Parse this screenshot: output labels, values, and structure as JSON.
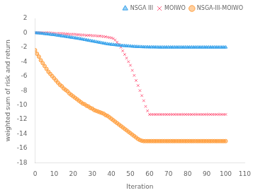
{
  "chart_data": {
    "type": "line",
    "title": "",
    "xlabel": "Iteration",
    "ylabel": "weighted sum of risk and return",
    "xlim": [
      0,
      110
    ],
    "ylim": [
      -18,
      2
    ],
    "xticks": [
      0,
      10,
      20,
      30,
      40,
      50,
      60,
      70,
      80,
      90,
      100,
      110
    ],
    "yticks": [
      2,
      0,
      -2,
      -4,
      -6,
      -8,
      -10,
      -12,
      -14,
      -16,
      -18
    ],
    "grid": false,
    "legend": "upper right",
    "x": [
      0,
      1,
      2,
      3,
      4,
      5,
      6,
      7,
      8,
      9,
      10,
      11,
      12,
      13,
      14,
      15,
      16,
      17,
      18,
      19,
      20,
      21,
      22,
      23,
      24,
      25,
      26,
      27,
      28,
      29,
      30,
      31,
      32,
      33,
      34,
      35,
      36,
      37,
      38,
      39,
      40,
      41,
      42,
      43,
      44,
      45,
      46,
      47,
      48,
      49,
      50,
      51,
      52,
      53,
      54,
      55,
      56,
      57,
      58,
      59,
      60,
      61,
      62,
      63,
      64,
      65,
      66,
      67,
      68,
      69,
      70,
      71,
      72,
      73,
      74,
      75,
      76,
      77,
      78,
      79,
      80,
      81,
      82,
      83,
      84,
      85,
      86,
      87,
      88,
      89,
      90,
      91,
      92,
      93,
      94,
      95,
      96,
      97,
      98,
      99,
      100
    ],
    "series": [
      {
        "name": "NSGA III",
        "marker": "triangle",
        "line_style": "dashed",
        "values": [
          0.0,
          -0.02,
          -0.04,
          -0.07,
          -0.1,
          -0.13,
          -0.16,
          -0.19,
          -0.22,
          -0.25,
          -0.28,
          -0.32,
          -0.36,
          -0.4,
          -0.44,
          -0.48,
          -0.52,
          -0.56,
          -0.6,
          -0.64,
          -0.68,
          -0.72,
          -0.76,
          -0.8,
          -0.85,
          -0.9,
          -0.95,
          -1.0,
          -1.05,
          -1.1,
          -1.15,
          -1.2,
          -1.25,
          -1.3,
          -1.35,
          -1.4,
          -1.45,
          -1.5,
          -1.55,
          -1.58,
          -1.61,
          -1.64,
          -1.67,
          -1.7,
          -1.73,
          -1.76,
          -1.78,
          -1.8,
          -1.82,
          -1.84,
          -1.86,
          -1.88,
          -1.9,
          -1.92,
          -1.93,
          -1.94,
          -1.95,
          -1.96,
          -1.97,
          -1.97,
          -1.98,
          -1.98,
          -1.98,
          -1.99,
          -1.99,
          -2.0,
          -2.0,
          -2.0,
          -2.0,
          -2.0,
          -2.0,
          -2.0,
          -2.0,
          -2.0,
          -2.0,
          -2.0,
          -2.0,
          -2.0,
          -2.0,
          -2.0,
          -2.0,
          -2.0,
          -2.0,
          -2.0,
          -2.0,
          -2.0,
          -2.0,
          -2.0,
          -2.0,
          -2.0,
          -2.0,
          -2.0,
          -2.0,
          -2.0,
          -2.0,
          -2.0,
          -2.0,
          -2.0,
          -2.0,
          -2.0,
          -2.0
        ]
      },
      {
        "name": "MOIWO",
        "marker": "x",
        "line_style": "none",
        "values": [
          0.0,
          0.0,
          0.0,
          0.0,
          0.0,
          0.0,
          0.0,
          0.0,
          0.0,
          -0.05,
          -0.05,
          -0.1,
          -0.1,
          -0.1,
          -0.1,
          -0.1,
          -0.15,
          -0.15,
          -0.2,
          -0.2,
          -0.2,
          -0.2,
          -0.25,
          -0.25,
          -0.3,
          -0.3,
          -0.3,
          -0.35,
          -0.35,
          -0.35,
          -0.4,
          -0.4,
          -0.4,
          -0.45,
          -0.45,
          -0.5,
          -0.5,
          -0.55,
          -0.6,
          -0.65,
          -0.7,
          -0.8,
          -1.0,
          -1.3,
          -1.6,
          -2.0,
          -2.5,
          -3.0,
          -3.5,
          -4.0,
          -4.5,
          -5.2,
          -5.9,
          -6.6,
          -7.3,
          -8.0,
          -8.7,
          -9.4,
          -10.2,
          -10.8,
          -11.3,
          -11.3,
          -11.3,
          -11.3,
          -11.3,
          -11.3,
          -11.3,
          -11.3,
          -11.3,
          -11.3,
          -11.3,
          -11.3,
          -11.3,
          -11.3,
          -11.3,
          -11.3,
          -11.3,
          -11.3,
          -11.3,
          -11.3,
          -11.3,
          -11.3,
          -11.3,
          -11.3,
          -11.3,
          -11.3,
          -11.3,
          -11.3,
          -11.3,
          -11.3,
          -11.3,
          -11.3,
          -11.3,
          -11.3,
          -11.3,
          -11.3,
          -11.3,
          -11.3,
          -11.3,
          -11.3,
          -11.3
        ]
      },
      {
        "name": "NSGA-III-MOIWO",
        "marker": "circle",
        "line_style": "dotted",
        "values": [
          -2.4,
          -2.9,
          -3.3,
          -3.8,
          -4.2,
          -4.6,
          -5.0,
          -5.4,
          -5.7,
          -6.0,
          -6.3,
          -6.6,
          -6.9,
          -7.2,
          -7.4,
          -7.7,
          -7.9,
          -8.1,
          -8.4,
          -8.6,
          -8.8,
          -9.0,
          -9.2,
          -9.4,
          -9.6,
          -9.8,
          -9.9,
          -10.1,
          -10.2,
          -10.4,
          -10.5,
          -10.7,
          -10.8,
          -10.9,
          -11.0,
          -11.1,
          -11.2,
          -11.4,
          -11.5,
          -11.7,
          -11.9,
          -12.1,
          -12.3,
          -12.5,
          -12.7,
          -12.9,
          -13.1,
          -13.3,
          -13.5,
          -13.7,
          -13.9,
          -14.1,
          -14.3,
          -14.5,
          -14.7,
          -14.85,
          -14.95,
          -15.0,
          -15.0,
          -15.0,
          -15.0,
          -15.0,
          -15.0,
          -15.0,
          -15.0,
          -15.0,
          -15.0,
          -15.0,
          -15.0,
          -15.0,
          -15.0,
          -15.0,
          -15.0,
          -15.0,
          -15.0,
          -15.0,
          -15.0,
          -15.0,
          -15.0,
          -15.0,
          -15.0,
          -15.0,
          -15.0,
          -15.0,
          -15.0,
          -15.0,
          -15.0,
          -15.0,
          -15.0,
          -15.0,
          -15.0,
          -15.0,
          -15.0,
          -15.0,
          -15.0,
          -15.0,
          -15.0,
          -15.0,
          -15.0,
          -15.0,
          -15.0
        ]
      }
    ]
  }
}
